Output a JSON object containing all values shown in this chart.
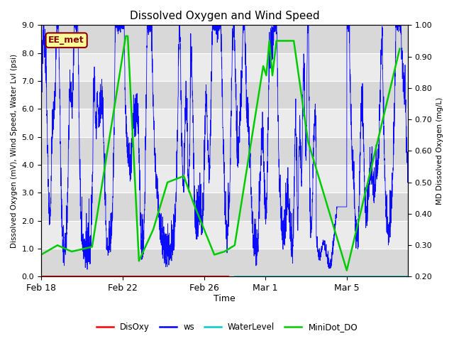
{
  "title": "Dissolved Oxygen and Wind Speed",
  "ylabel_left": "Dissolved Oxygen (mV), Wind Speed, Water Lvl (psi)",
  "ylabel_right": "MD Dissolved Oxygen (mg/L)",
  "xlabel": "Time",
  "ylim_left": [
    0.0,
    9.0
  ],
  "ylim_right": [
    0.2,
    1.0
  ],
  "xtick_labels": [
    "Feb 18",
    "Feb 22",
    "Feb 26",
    "Mar 1",
    "Mar 5"
  ],
  "xtick_days": [
    0,
    4,
    8,
    11,
    15
  ],
  "total_days": 18.0,
  "annotation_text": "EE_met",
  "annotation_color": "#8B0000",
  "annotation_bg": "#FFFF99",
  "bg_color_dark": "#D8D8D8",
  "bg_color_light": "#EBEBEB",
  "minidot_days": [
    0.0,
    0.8,
    1.5,
    2.5,
    4.15,
    4.25,
    4.8,
    5.5,
    6.2,
    7.0,
    7.5,
    8.0,
    8.5,
    9.0,
    9.5,
    10.9,
    11.05,
    11.2,
    11.35,
    11.55,
    12.4,
    13.1,
    15.0,
    17.6
  ],
  "minidot_rvals": [
    0.27,
    0.3,
    0.28,
    0.295,
    0.965,
    0.965,
    0.25,
    0.35,
    0.5,
    0.52,
    0.43,
    0.35,
    0.27,
    0.28,
    0.3,
    0.87,
    0.84,
    0.95,
    0.84,
    0.95,
    0.95,
    0.63,
    0.22,
    0.925
  ],
  "disoxy_x_end": 9.2,
  "waterlevel_x_start": 9.5,
  "legend_colors": [
    "#FF0000",
    "#0000FF",
    "#00CCCC",
    "#00CC00"
  ]
}
